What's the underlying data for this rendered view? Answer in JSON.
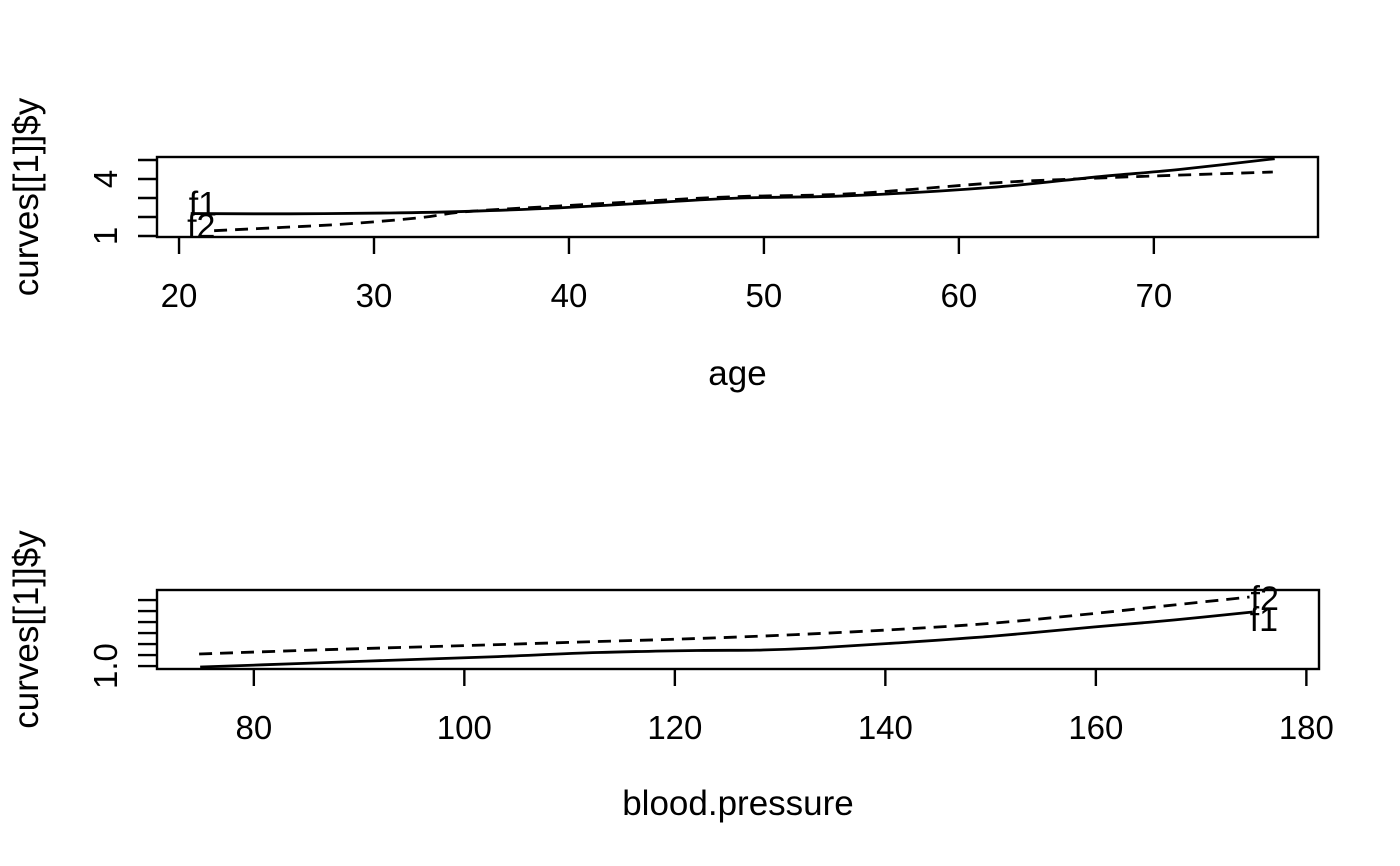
{
  "page": {
    "background": "#ffffff",
    "foreground": "#000000"
  },
  "chart_data": [
    {
      "type": "line",
      "title": "",
      "xlabel": "age",
      "ylabel": "curves[[1]]$y",
      "xlim": [
        18.87,
        78.42
      ],
      "ylim": [
        0.947,
        5.158
      ],
      "grid": false,
      "legend_position": "labels-on-curves",
      "x_ticks": {
        "values": [
          20,
          30,
          40,
          50,
          60,
          70
        ],
        "labels": [
          "20",
          "30",
          "40",
          "50",
          "60",
          "70"
        ]
      },
      "y_ticks": {
        "values": [
          1,
          2,
          3,
          4,
          5
        ],
        "labels": [
          "1",
          "",
          "",
          "4",
          ""
        ]
      },
      "series": [
        {
          "name": "f1",
          "style": "solid",
          "color": "#000000",
          "label_at": "start",
          "label_dx": -2,
          "label_dy": 2,
          "x": [
            20.6,
            25.7,
            30.8,
            34.9,
            39.5,
            44.7,
            48.8,
            54.4,
            61.6,
            67.2,
            71.3,
            76.2
          ],
          "y": [
            2.18,
            2.17,
            2.21,
            2.3,
            2.48,
            2.78,
            3.0,
            3.12,
            3.55,
            4.12,
            4.5,
            5.07
          ]
        },
        {
          "name": "f2",
          "style": "dashed",
          "color": "#000000",
          "label_at": "start",
          "label_dx": -27,
          "label_dy": 7,
          "x": [
            21.8,
            25.3,
            28.8,
            32.4,
            34.7,
            39.5,
            44.7,
            48.8,
            54.4,
            61.6,
            65.2,
            69.8,
            76.1
          ],
          "y": [
            1.28,
            1.45,
            1.65,
            1.97,
            2.28,
            2.58,
            2.88,
            3.08,
            3.22,
            3.78,
            3.97,
            4.15,
            4.37
          ]
        }
      ]
    },
    {
      "type": "line",
      "title": "",
      "xlabel": "blood.pressure",
      "ylabel": "curves[[1]]$y",
      "xlim": [
        70.8,
        181.2
      ],
      "ylim": [
        0.973,
        1.691
      ],
      "grid": false,
      "legend_position": "labels-on-curves",
      "x_ticks": {
        "values": [
          80,
          100,
          120,
          140,
          160,
          180
        ],
        "labels": [
          "80",
          "100",
          "120",
          "140",
          "160",
          "180"
        ]
      },
      "y_ticks": {
        "values": [
          1.0,
          1.1,
          1.2,
          1.3,
          1.4,
          1.5,
          1.6
        ],
        "labels": [
          "1.0",
          "",
          "",
          "",
          "",
          "",
          ""
        ]
      },
      "series": [
        {
          "name": "f1",
          "style": "solid",
          "color": "#000000",
          "label_at": "end",
          "label_dx": -3,
          "label_dy": 19,
          "x": [
            74.9,
            84.4,
            93.8,
            103.2,
            112.7,
            122.1,
            127.8,
            133.4,
            141.0,
            150.4,
            159.8,
            167.4,
            174.9
          ],
          "y": [
            0.991,
            1.023,
            1.055,
            1.086,
            1.123,
            1.141,
            1.145,
            1.164,
            1.209,
            1.273,
            1.355,
            1.418,
            1.491
          ]
        },
        {
          "name": "f2",
          "style": "dashed",
          "color": "#000000",
          "label_at": "end",
          "label_dx": 1,
          "label_dy": 13,
          "x": [
            74.8,
            84.4,
            93.8,
            103.2,
            112.7,
            122.1,
            131.5,
            141.0,
            150.4,
            159.8,
            167.4,
            174.6
          ],
          "y": [
            1.109,
            1.141,
            1.168,
            1.195,
            1.223,
            1.25,
            1.286,
            1.332,
            1.391,
            1.477,
            1.555,
            1.627
          ]
        }
      ]
    }
  ]
}
